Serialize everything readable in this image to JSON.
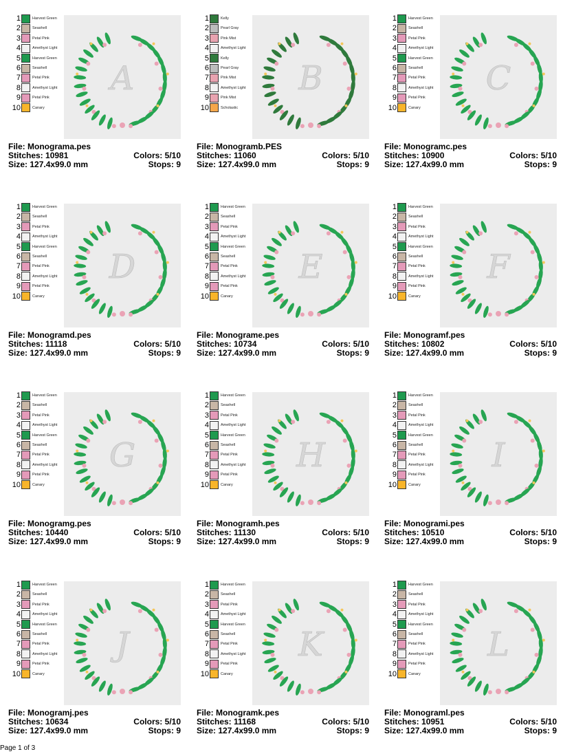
{
  "palette": {
    "Harvest Green": "#1f9a4f",
    "Seashell": "#c8b6a6",
    "Petal Pink": "#e49ab9",
    "Amethyst Light": "#f2f2f2",
    "Canary": "#f8b52b",
    "Kelly": "#2f7a3c",
    "Pearl Gray": "#bdbdbd",
    "Pink Mist": "#e8a3b0",
    "Scholastic": "#f6a74b"
  },
  "labels": {
    "file": "File: ",
    "stitches": "Stitches: ",
    "size": "Size: ",
    "colors": "Colors: ",
    "stops": "Stops: "
  },
  "standard_colors": [
    "Harvest Green",
    "Seashell",
    "Petal Pink",
    "Amethyst Light",
    "Harvest Green",
    "Seashell",
    "Petal Pink",
    "Amethyst Light",
    "Petal Pink",
    "Canary"
  ],
  "designs": [
    {
      "file": "Monograma.pes",
      "stitches": "10981",
      "size": "127.4x99.0 mm",
      "colors": "5/10",
      "stops": "9",
      "letter": "A"
    },
    {
      "file": "Monogramb.PES",
      "stitches": "11060",
      "size": "127.4x99.0 mm",
      "colors": "5/10",
      "stops": "9",
      "letter": "B",
      "color_list": [
        "Kelly",
        "Pearl Gray",
        "Pink Mist",
        "Amethyst Light",
        "Kelly",
        "Pearl Gray",
        "Pink Mist",
        "Amethyst Light",
        "Pink Mist",
        "Scholastic"
      ]
    },
    {
      "file": "Monogramc.pes",
      "stitches": "10900",
      "size": "127.4x99.0 mm",
      "colors": "5/10",
      "stops": "9",
      "letter": "C"
    },
    {
      "file": "Monogramd.pes",
      "stitches": "11118",
      "size": "127.4x99.0 mm",
      "colors": "5/10",
      "stops": "9",
      "letter": "D"
    },
    {
      "file": "Monograme.pes",
      "stitches": "10734",
      "size": "127.4x99.0 mm",
      "colors": "5/10",
      "stops": "9",
      "letter": "E"
    },
    {
      "file": "Monogramf.pes",
      "stitches": "10802",
      "size": "127.4x99.0 mm",
      "colors": "5/10",
      "stops": "9",
      "letter": "F"
    },
    {
      "file": "Monogramg.pes",
      "stitches": "10440",
      "size": "127.4x99.0 mm",
      "colors": "5/10",
      "stops": "9",
      "letter": "G"
    },
    {
      "file": "Monogramh.pes",
      "stitches": "11130",
      "size": "127.4x99.0 mm",
      "colors": "5/10",
      "stops": "9",
      "letter": "H"
    },
    {
      "file": "Monogrami.pes",
      "stitches": "10510",
      "size": "127.4x99.0 mm",
      "colors": "5/10",
      "stops": "9",
      "letter": "I"
    },
    {
      "file": "Monogramj.pes",
      "stitches": "10634",
      "size": "127.4x99.0 mm",
      "colors": "5/10",
      "stops": "9",
      "letter": "J"
    },
    {
      "file": "Monogramk.pes",
      "stitches": "11168",
      "size": "127.4x99.0 mm",
      "colors": "5/10",
      "stops": "9",
      "letter": "K"
    },
    {
      "file": "Monograml.pes",
      "stitches": "10951",
      "size": "127.4x99.0 mm",
      "colors": "5/10",
      "stops": "9",
      "letter": "L"
    }
  ],
  "footer": {
    "page": "Page 1 of 3"
  }
}
